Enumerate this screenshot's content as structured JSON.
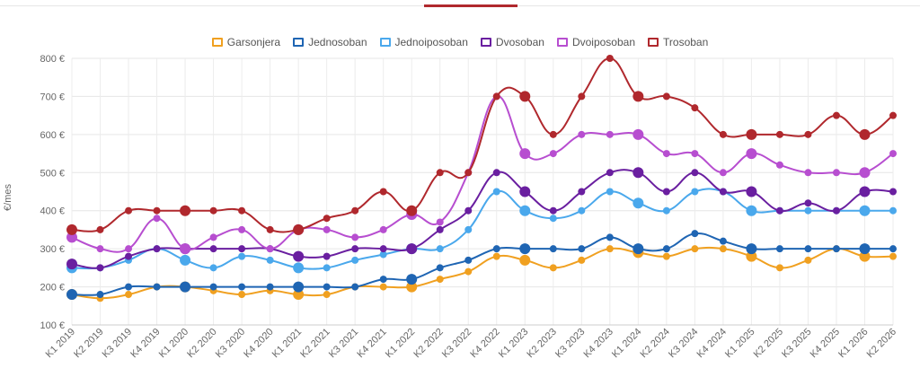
{
  "chart_data": {
    "type": "line",
    "ylabel": "€/mes",
    "ylim": [
      100,
      800
    ],
    "yticks": [
      "100 €",
      "200 €",
      "300 €",
      "400 €",
      "500 €",
      "600 €",
      "700 €",
      "800 €"
    ],
    "ytick_values": [
      100,
      200,
      300,
      400,
      500,
      600,
      700,
      800
    ],
    "grid": true,
    "legend_position": "top-center",
    "categories": [
      "K1 2019",
      "K2 2019",
      "K3 2019",
      "K4 2019",
      "K1 2020",
      "K2 2020",
      "K3 2020",
      "K4 2020",
      "K1 2021",
      "K2 2021",
      "K3 2021",
      "K4 2021",
      "K1 2022",
      "K2 2022",
      "K3 2022",
      "K4 2022",
      "K1 2023",
      "K2 2023",
      "K3 2023",
      "K4 2023",
      "K1 2024",
      "K2 2024",
      "K3 2024",
      "K4 2024",
      "K1 2025",
      "K2 2025",
      "K3 2025",
      "K4 2025",
      "K1 2026",
      "K2 2026"
    ],
    "series": [
      {
        "name": "Garsonjera",
        "color": "#f0a020",
        "values": [
          180,
          170,
          180,
          200,
          200,
          190,
          180,
          190,
          180,
          180,
          200,
          200,
          200,
          220,
          240,
          280,
          270,
          250,
          270,
          300,
          290,
          280,
          300,
          300,
          280,
          250,
          270,
          300,
          280,
          280
        ]
      },
      {
        "name": "Jednosoban",
        "color": "#1f65b3",
        "values": [
          180,
          180,
          200,
          200,
          200,
          200,
          200,
          200,
          200,
          200,
          200,
          220,
          220,
          250,
          270,
          300,
          300,
          300,
          300,
          330,
          300,
          300,
          340,
          320,
          300,
          300,
          300,
          300,
          300,
          300
        ]
      },
      {
        "name": "Jednoiposoban",
        "color": "#4aa8ec",
        "values": [
          250,
          250,
          270,
          300,
          270,
          250,
          280,
          270,
          250,
          250,
          270,
          285,
          300,
          300,
          350,
          450,
          400,
          380,
          400,
          450,
          420,
          400,
          450,
          450,
          400,
          400,
          400,
          400,
          400,
          400
        ]
      },
      {
        "name": "Dvosoban",
        "color": "#6a1fa0",
        "values": [
          260,
          250,
          280,
          300,
          300,
          300,
          300,
          300,
          280,
          280,
          300,
          300,
          300,
          350,
          400,
          500,
          450,
          400,
          450,
          500,
          500,
          450,
          500,
          450,
          450,
          400,
          420,
          400,
          450,
          450
        ]
      },
      {
        "name": "Dvoiposoban",
        "color": "#b74ed0",
        "values": [
          330,
          300,
          300,
          380,
          300,
          330,
          350,
          300,
          350,
          350,
          330,
          350,
          390,
          370,
          500,
          700,
          550,
          550,
          600,
          600,
          600,
          550,
          550,
          500,
          550,
          520,
          500,
          500,
          500,
          550
        ]
      },
      {
        "name": "Trosoban",
        "color": "#b0282d",
        "values": [
          350,
          350,
          400,
          400,
          400,
          400,
          400,
          350,
          350,
          380,
          400,
          450,
          400,
          500,
          500,
          700,
          700,
          600,
          700,
          800,
          700,
          700,
          670,
          600,
          600,
          600,
          600,
          650,
          600,
          650
        ]
      }
    ],
    "large_markers": [
      0,
      4,
      8,
      12,
      16,
      20,
      24,
      28
    ]
  }
}
